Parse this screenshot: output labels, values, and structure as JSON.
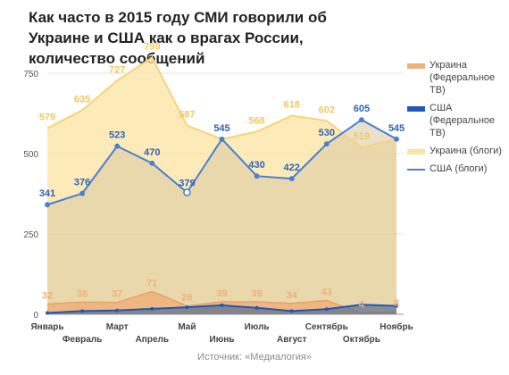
{
  "header": {
    "title": "Как часто в 2015 году СМИ говорили об Украине и США как о врагах России, количество сообщений"
  },
  "source": "Источник: «Медиалогия»",
  "colors": {
    "ukraine_tv": "#f0b07a",
    "usa_tv": "#1e58b8",
    "ukraine_blogs": "#fbe3a0",
    "usa_blogs": "#4a7fd2",
    "grid": "#e5e5e5",
    "axis_text": "#555555"
  },
  "chart_data": {
    "type": "area",
    "title": "Как часто в 2015 году СМИ говорили об Украине и США как о врагах России, количество сообщений",
    "xlabel": "",
    "ylabel": "",
    "ylim": [
      0,
      800
    ],
    "yticks": [
      "0",
      "250",
      "500",
      "750"
    ],
    "categories": [
      "Январь",
      "Февраль",
      "Март",
      "Апрель",
      "Май",
      "Июнь",
      "Июль",
      "Август",
      "Сентябрь",
      "Октябрь",
      "Ноябрь"
    ],
    "legend_position": "right",
    "grid": true,
    "series": [
      {
        "name": "Украина (Федеральное ТВ)",
        "kind": "area",
        "color": "#f0b07a",
        "values": [
          32,
          38,
          37,
          71,
          26,
          39,
          39,
          34,
          43,
          4,
          8
        ],
        "labels": [
          "32",
          "38",
          "37",
          "71",
          "26",
          "39",
          "39",
          "34",
          "43",
          "4",
          "8"
        ]
      },
      {
        "name": "США (Федеральное ТВ)",
        "kind": "area",
        "color": "#1e58b8",
        "values": [
          4,
          10,
          12,
          17,
          22,
          28,
          20,
          10,
          16,
          30,
          26
        ],
        "labels": []
      },
      {
        "name": "Украина (блоги)",
        "kind": "area",
        "color": "#fbe3a0",
        "values": [
          579,
          635,
          727,
          799,
          587,
          545,
          568,
          618,
          602,
          519,
          545
        ],
        "labels": [
          "579",
          "635",
          "727",
          "799",
          "587",
          "",
          "568",
          "618",
          "602",
          "519",
          ""
        ]
      },
      {
        "name": "США (блоги)",
        "kind": "line",
        "color": "#4a7fd2",
        "values": [
          341,
          376,
          523,
          470,
          379,
          545,
          430,
          422,
          530,
          605,
          545
        ],
        "labels": [
          "341",
          "376",
          "523",
          "470",
          "379",
          "545",
          "430",
          "422",
          "530",
          "605",
          "545"
        ]
      }
    ]
  }
}
